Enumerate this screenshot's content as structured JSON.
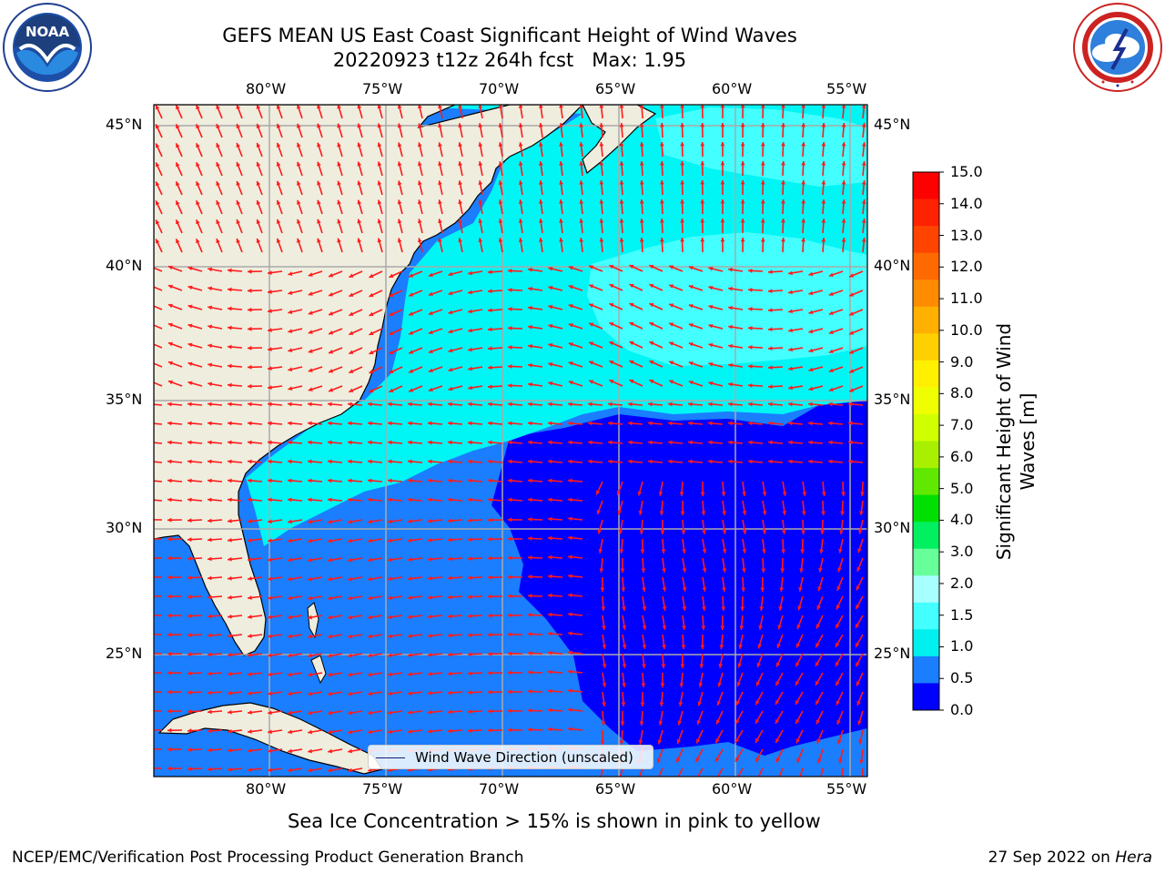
{
  "title": {
    "line1": "GEFS MEAN US East Coast Significant Height of Wind Waves",
    "line2": "20220923 t12z 264h fcst   Max: 1.95"
  },
  "logos": {
    "left": {
      "icon": "noaa-logo",
      "text": "NOAA",
      "ring_text": "NATIONAL OCEANIC AND ATMOSPHERIC ADMINISTRATION · U.S. DEPARTMENT OF COMMERCE"
    },
    "right": {
      "icon": "nws-logo",
      "ring_text": "NATIONAL WEATHER SERVICE"
    }
  },
  "map": {
    "lon_labels": [
      "80°W",
      "75°W",
      "70°W",
      "65°W",
      "60°W",
      "55°W"
    ],
    "lat_labels": [
      "45°N",
      "40°N",
      "35°N",
      "30°N",
      "25°N"
    ],
    "land_color": "#efedde",
    "ocean_colors": {
      "band_0_0_5": "#0000ff",
      "band_0_5_1_0": "#1a7eff",
      "band_1_0_1_5": "#00f5f5",
      "band_1_5_2_0": "#44ffff"
    },
    "arrow_color": "#ff1a1a",
    "legend_label": "Wind Wave Direction (unscaled)"
  },
  "colorbar": {
    "title_line1": "Significant Height of Wind",
    "title_line2": "Waves [m]",
    "ticks": [
      "15.0",
      "14.0",
      "13.0",
      "12.0",
      "11.0",
      "10.0",
      "9.0",
      "8.0",
      "7.0",
      "6.0",
      "5.0",
      "4.0",
      "3.0",
      "2.0",
      "1.5",
      "1.0",
      "0.5",
      "0.0"
    ],
    "colors_top_to_bottom": [
      "#ff0000",
      "#ff2200",
      "#ff4400",
      "#ff6a00",
      "#ff8c00",
      "#ffb000",
      "#ffd000",
      "#fff000",
      "#f0ff00",
      "#d0ff00",
      "#a8f000",
      "#60e800",
      "#00e000",
      "#00f060",
      "#66ff99",
      "#a8ffff",
      "#44ffff",
      "#00f0f0",
      "#1a7eff",
      "#0000ff"
    ]
  },
  "subtitle": "Sea Ice Concentration > 15% is shown in pink to yellow",
  "footer": {
    "left": "NCEP/EMC/Verification Post Processing Product Generation Branch",
    "right_prefix": "27 Sep 2022 on ",
    "right_host": "Hera"
  }
}
